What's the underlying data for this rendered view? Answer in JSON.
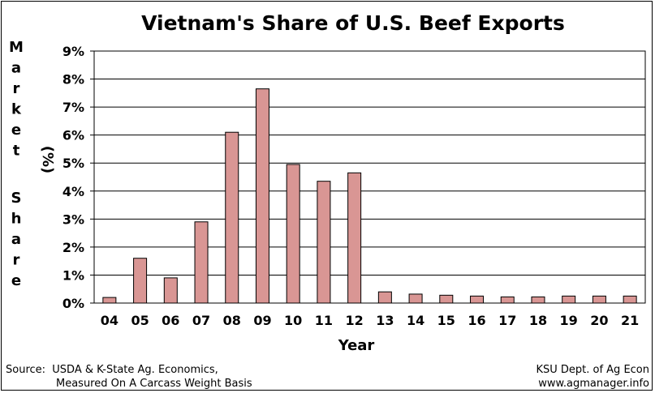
{
  "chart_data": {
    "type": "bar",
    "title": "Vietnam's Share of U.S. Beef Exports",
    "xlabel": "Year",
    "ylabel": "Market Share (%)",
    "ylabel_word1": "Market",
    "ylabel_word2": "Share",
    "ylabel_unit": "(%)",
    "categories": [
      "04",
      "05",
      "06",
      "07",
      "08",
      "09",
      "10",
      "11",
      "12",
      "13",
      "14",
      "15",
      "16",
      "17",
      "18",
      "19",
      "20",
      "21"
    ],
    "values": [
      0.2,
      1.6,
      0.9,
      2.9,
      6.1,
      7.65,
      4.95,
      4.35,
      4.65,
      0.4,
      0.32,
      0.28,
      0.25,
      0.22,
      0.22,
      0.25,
      0.25,
      0.25
    ],
    "ylim": [
      0,
      9
    ],
    "yticks": [
      "0%",
      "1%",
      "2%",
      "3%",
      "4%",
      "5%",
      "6%",
      "7%",
      "8%",
      "9%"
    ],
    "grid": true,
    "bar_color": "#d99694"
  },
  "source_left": {
    "line1": "Source:  USDA & K-State Ag. Economics,",
    "line2": "               Measured On A Carcass Weight Basis"
  },
  "source_right": {
    "line1": "KSU Dept. of Ag Econ",
    "line2": "www.agmanager.info"
  }
}
